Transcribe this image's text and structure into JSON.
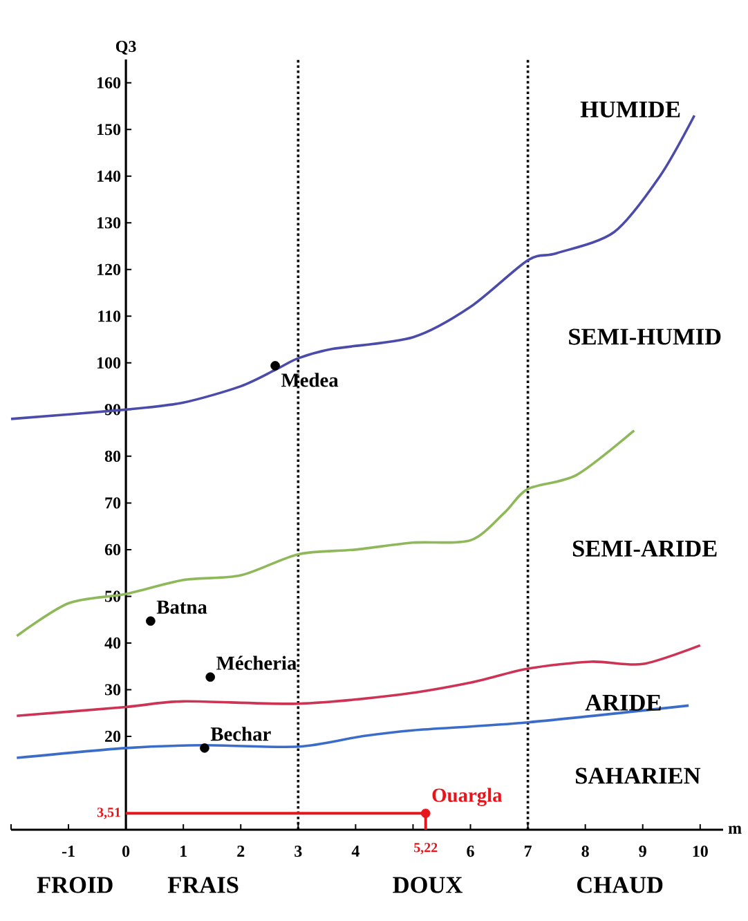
{
  "chart_data": {
    "type": "line",
    "xlabel": "m",
    "ylabel": "Q3",
    "xlim": [
      -2,
      10.4
    ],
    "ylim": [
      0,
      165
    ],
    "xticks": [
      {
        "value": -2,
        "label": null
      },
      -1,
      0,
      1,
      2,
      3,
      4,
      {
        "value": 5,
        "label": null
      },
      6,
      7,
      8,
      9,
      10
    ],
    "yticks": [
      20,
      30,
      40,
      50,
      60,
      70,
      80,
      90,
      100,
      110,
      120,
      130,
      140,
      150,
      160
    ],
    "series": [
      {
        "color": "#4b4baa",
        "x": [
          -2,
          0,
          1,
          2,
          2.6,
          3,
          3.6,
          5,
          6,
          7,
          7.5,
          8.5,
          9.3,
          9.9
        ],
        "values": [
          88,
          90,
          91.5,
          95,
          98.5,
          101,
          103,
          105.5,
          112,
          122,
          123.5,
          128,
          140,
          153
        ]
      },
      {
        "color": "#8fb85a",
        "x": [
          -1.9,
          -1,
          0,
          1,
          2,
          3,
          4,
          5,
          6,
          6.6,
          7,
          7.85,
          8.85
        ],
        "values": [
          41.5,
          48.5,
          50.5,
          53.5,
          54.5,
          59,
          60,
          61.5,
          62,
          68,
          73,
          76,
          85.5
        ]
      },
      {
        "color": "#cc3355",
        "x": [
          -1.9,
          0,
          1,
          3,
          4.8,
          6,
          7,
          8.1,
          9,
          10
        ],
        "values": [
          24.4,
          26.3,
          27.5,
          27,
          29,
          31.5,
          34.5,
          36,
          35.5,
          39.5
        ]
      },
      {
        "color": "#3a6cc8",
        "x": [
          -1.9,
          0,
          1.35,
          3,
          4.1,
          5,
          7,
          9.8
        ],
        "values": [
          15.4,
          17.5,
          18.1,
          17.8,
          20,
          21.3,
          23,
          26.6
        ]
      },
      {
        "type": "scatter",
        "name": "Medea",
        "color": "#000000",
        "x": [
          2.6
        ],
        "values": [
          99.4
        ]
      },
      {
        "type": "scatter",
        "name": "Batna",
        "color": "#000000",
        "x": [
          0.43
        ],
        "values": [
          44.7
        ]
      },
      {
        "type": "scatter",
        "name": "Mécheria",
        "color": "#000000",
        "x": [
          1.47
        ],
        "values": [
          32.7
        ]
      },
      {
        "type": "scatter",
        "name": "Bechar",
        "color": "#000000",
        "x": [
          1.37
        ],
        "values": [
          17.5
        ]
      },
      {
        "type": "scatter",
        "name": "Ouargla",
        "color": "#e8141c",
        "x": [
          5.22
        ],
        "values": [
          3.51
        ]
      }
    ],
    "ref_lines": [
      {
        "axis": "x",
        "value": 3,
        "color": "#000000",
        "line_style": "dotted"
      },
      {
        "axis": "x",
        "value": 7,
        "color": "#000000",
        "line_style": "dotted"
      },
      {
        "axis": "y",
        "value": 3.51,
        "label": "3,51",
        "color": "#e8141c"
      },
      {
        "axis": "x",
        "value": 5.22,
        "label": "5,22",
        "color": "#e8141c"
      }
    ],
    "annotations": [
      "HUMIDE",
      "SEMI-HUMID",
      "SEMI-ARIDE",
      "ARIDE",
      "SAHARIEN",
      "FROID",
      "FRAIS",
      "DOUX",
      "CHAUD"
    ]
  }
}
